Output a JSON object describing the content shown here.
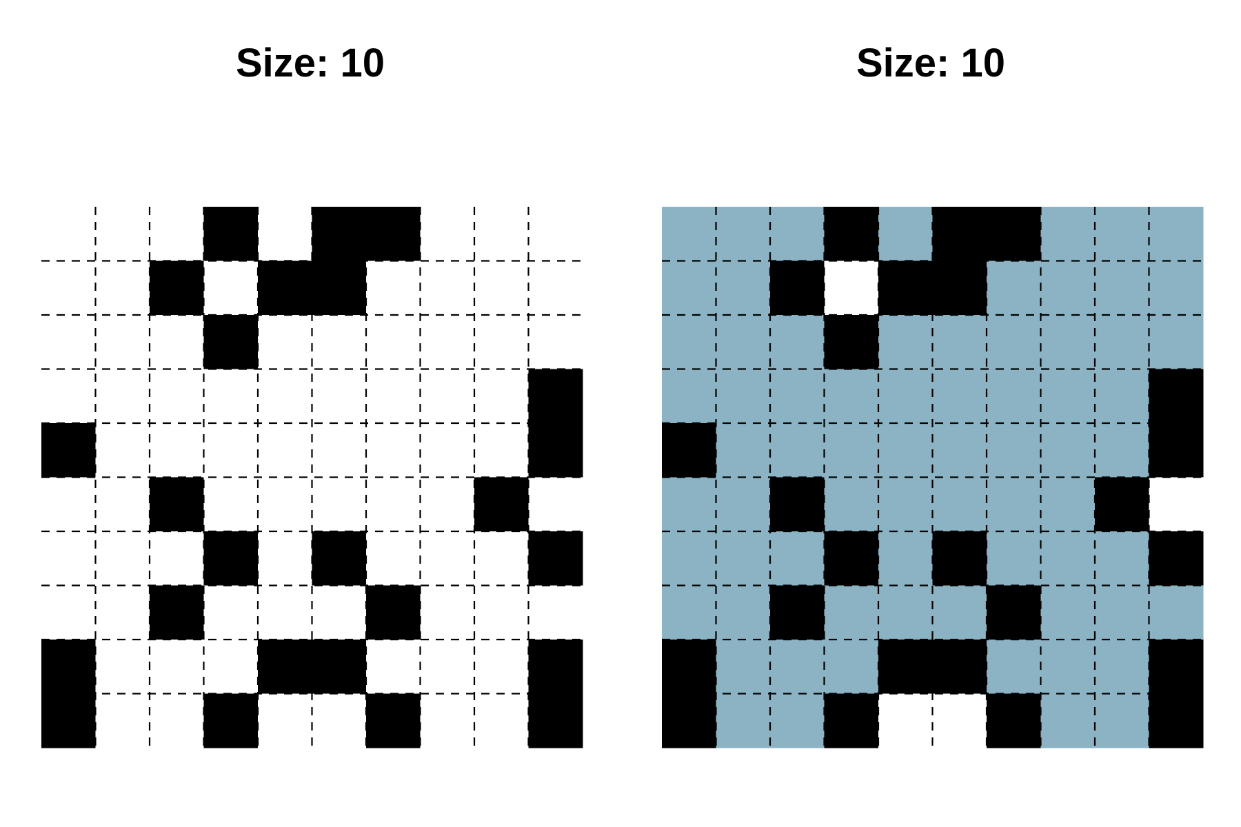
{
  "colors": {
    "open": "#ffffff",
    "blocked": "#000000",
    "filled": "#8bb3c4",
    "gridline": "#000000"
  },
  "panels": [
    {
      "title": "Size: 10",
      "size": 10,
      "grid": [
        "0001011000",
        "0010110000",
        "0001000000",
        "0000000001",
        "1000000001",
        "0010000010",
        "0001010001",
        "0010001000",
        "1000110001",
        "1001001001"
      ]
    },
    {
      "title": "Size: 10",
      "size": 10,
      "grid": [
        "2221211222",
        "2210112222",
        "2221222222",
        "2222222221",
        "1222222221",
        "2212222210",
        "2221212221",
        "2212221222",
        "1222112221",
        "1221001221"
      ]
    }
  ]
}
